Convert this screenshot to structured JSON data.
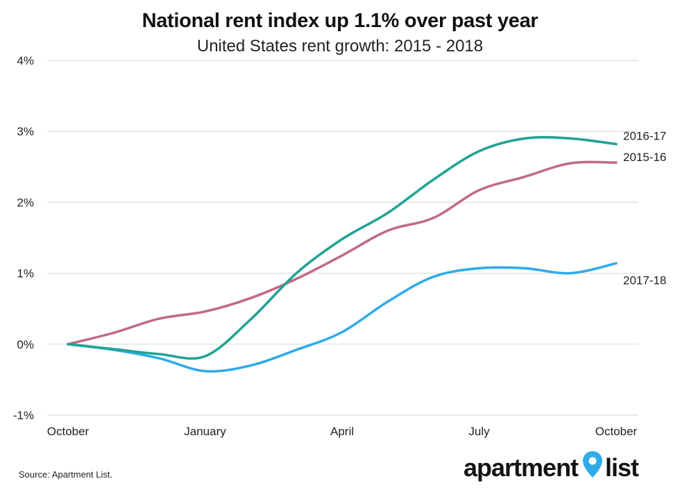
{
  "chart_data": {
    "type": "line",
    "title": "National rent index up 1.1% over past year",
    "subtitle": "United States rent growth: 2015 - 2018",
    "x_tick_labels": [
      "October",
      "January",
      "April",
      "July",
      "October"
    ],
    "x": [
      0,
      1,
      2,
      3,
      4,
      5,
      6,
      7,
      8,
      9,
      10,
      11,
      12
    ],
    "y_ticks": [
      -1,
      0,
      1,
      2,
      3,
      4
    ],
    "y_tick_labels": [
      "-1%",
      "0%",
      "1%",
      "2%",
      "3%",
      "4%"
    ],
    "ylim": [
      -1,
      4
    ],
    "grid": true,
    "series": [
      {
        "name": "2016-17",
        "color": "#22a394",
        "values": [
          0,
          -0.07,
          -0.14,
          -0.17,
          0.35,
          1.0,
          1.48,
          1.85,
          2.32,
          2.72,
          2.9,
          2.9,
          2.82
        ]
      },
      {
        "name": "2015-16",
        "color": "#c06b87",
        "values": [
          0,
          0.16,
          0.36,
          0.46,
          0.65,
          0.92,
          1.25,
          1.6,
          1.78,
          2.17,
          2.36,
          2.55,
          2.56
        ]
      },
      {
        "name": "2017-18",
        "color": "#30abe8",
        "values": [
          0,
          -0.08,
          -0.2,
          -0.38,
          -0.3,
          -0.08,
          0.17,
          0.6,
          0.95,
          1.07,
          1.07,
          1.0,
          1.14
        ]
      }
    ]
  },
  "source_text": "Source: Apartment List.",
  "logo": {
    "part1": "apartment",
    "part2": "list",
    "pin_color": "#30abe8"
  }
}
